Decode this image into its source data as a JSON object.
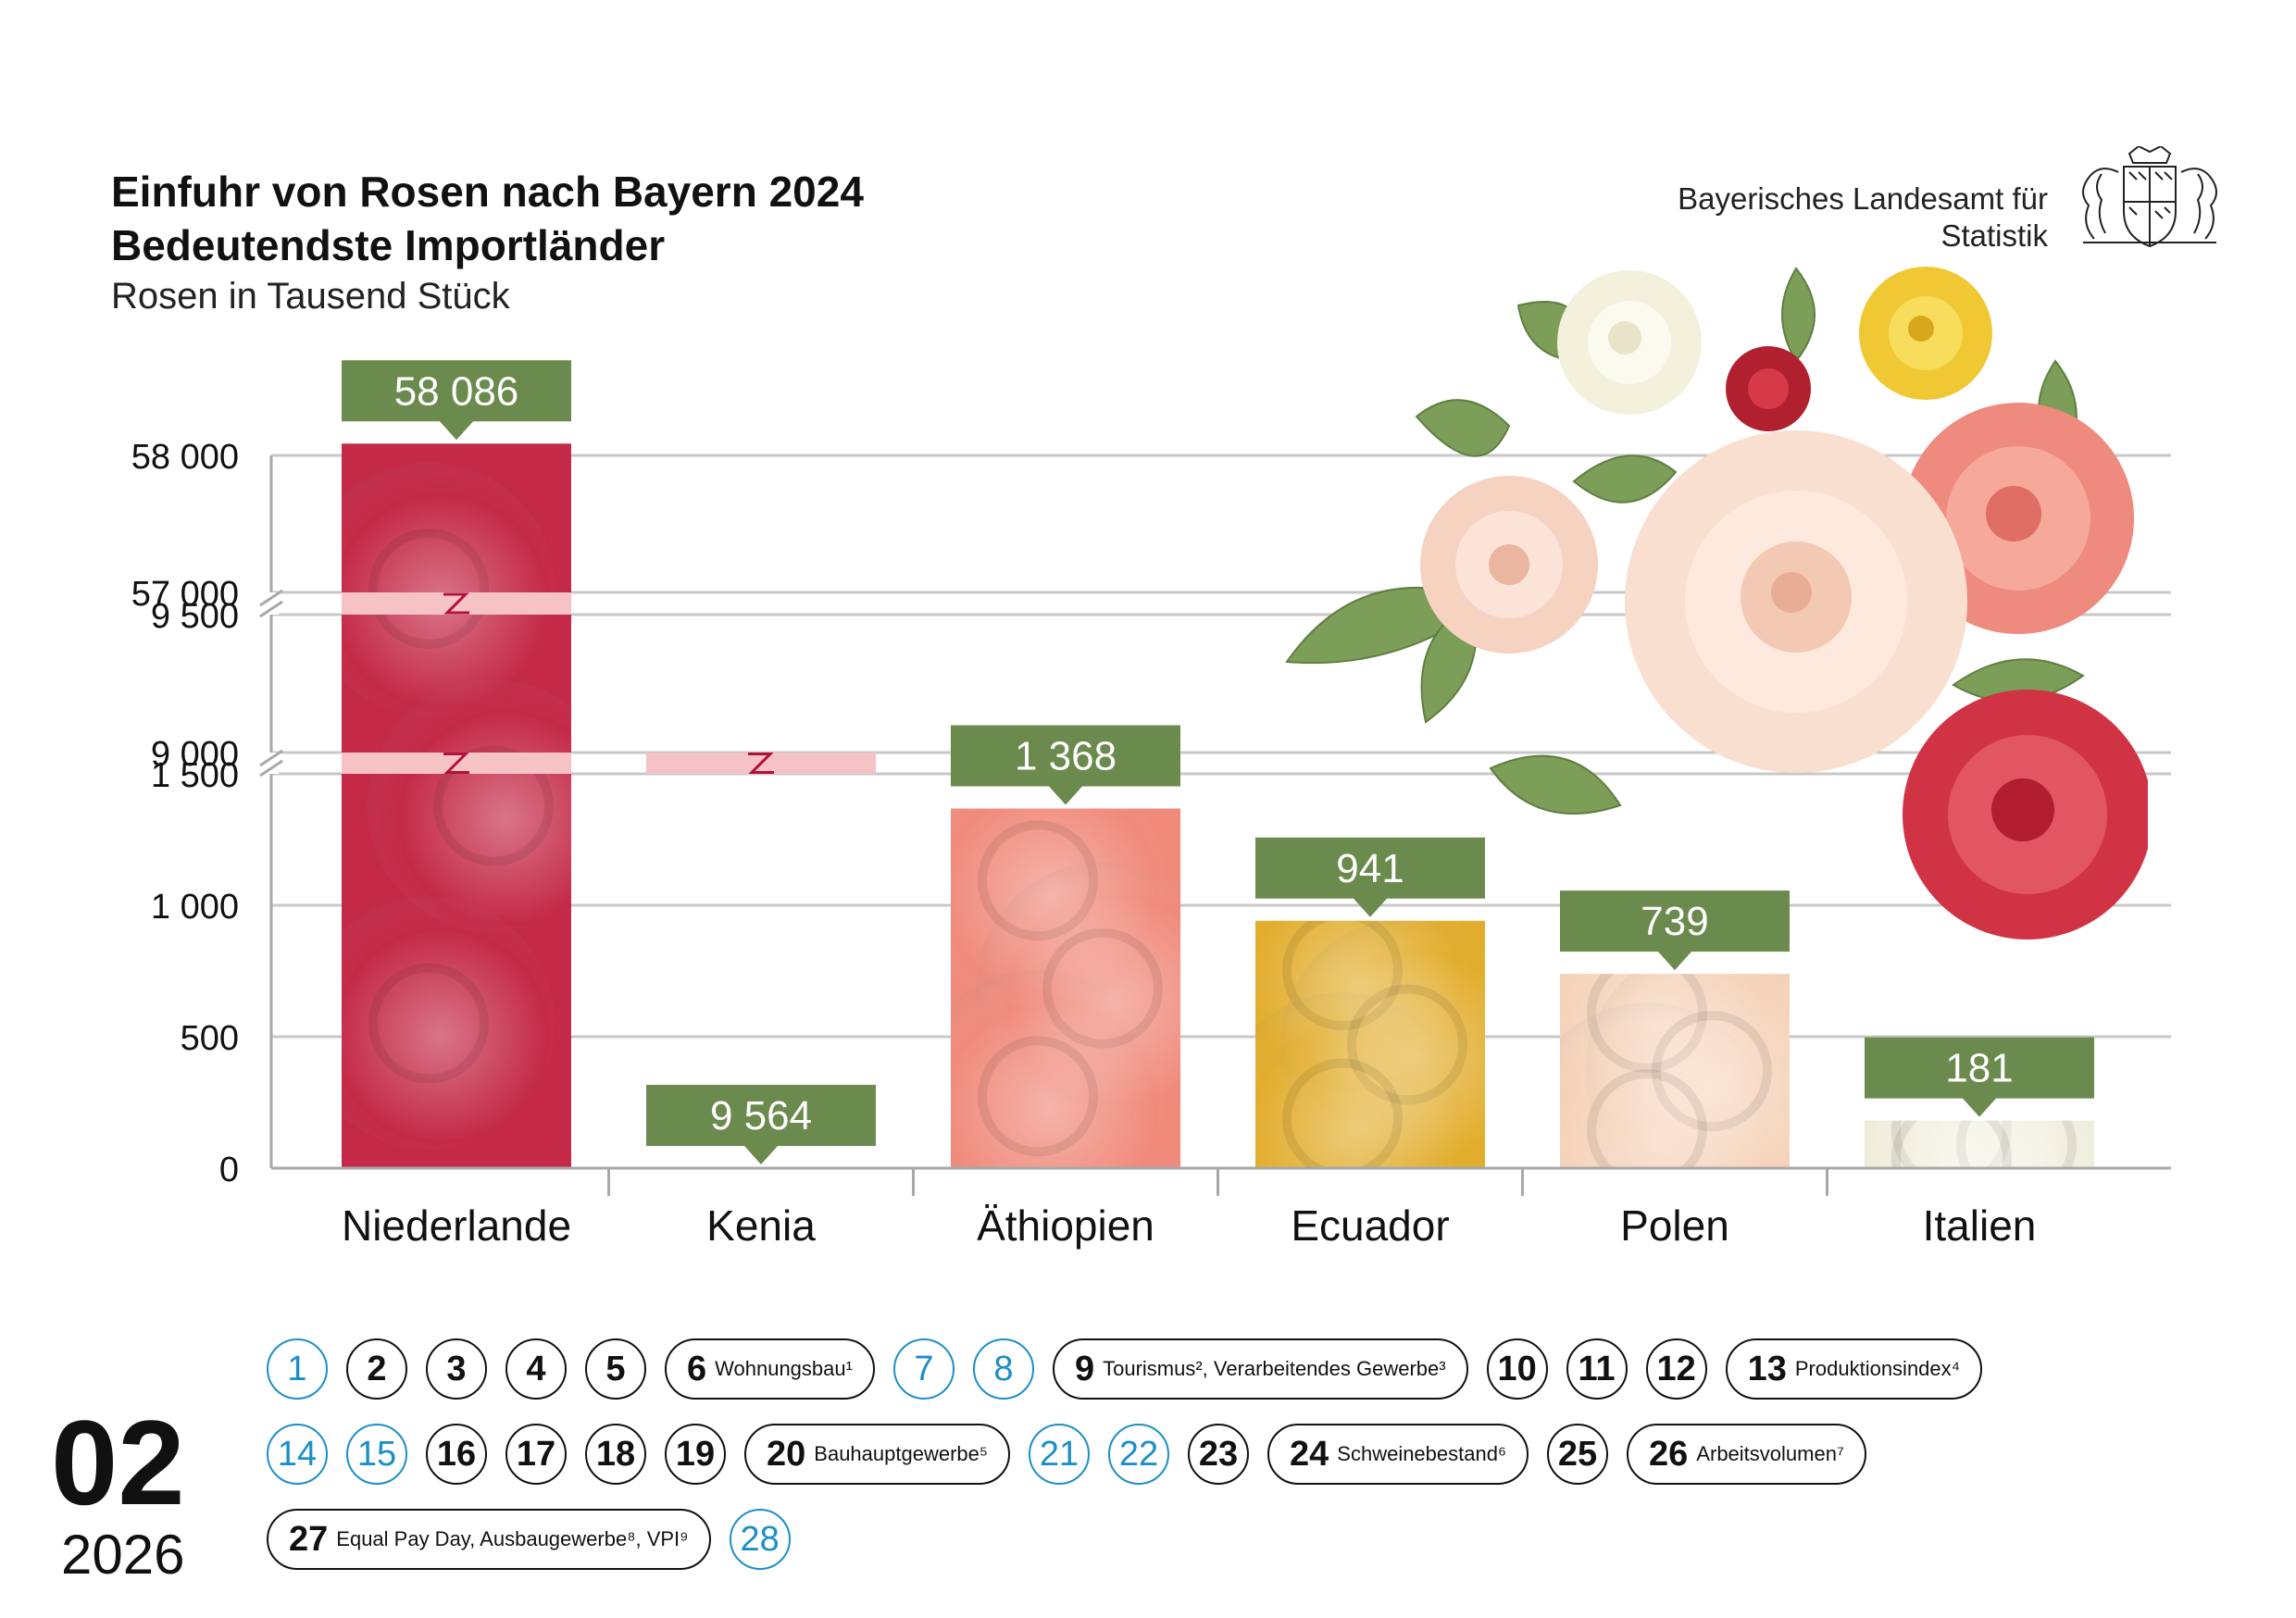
{
  "header": {
    "title_line1": "Einfuhr von Rosen nach Bayern 2024",
    "title_line2": "Bedeutendste Importländer",
    "subtitle": "Rosen in Tausend Stück",
    "office_line1": "Bayerisches Landesamt für",
    "office_line2": "Statistik"
  },
  "colors": {
    "value_box": "#6b8a4e",
    "grid": "#c8c8c8",
    "axis": "#a8a8a8",
    "break_band": "#f5c2c6",
    "break_mark": "#b0123a",
    "weekend": "#1d8fc8"
  },
  "chart_data": {
    "type": "bar",
    "title": "Einfuhr von Rosen nach Bayern 2024",
    "subtitle": "Rosen in Tausend Stück",
    "categories": [
      "Niederlande",
      "Kenia",
      "Äthiopien",
      "Ecuador",
      "Polen",
      "Italien"
    ],
    "values": [
      58086,
      9564,
      1368,
      941,
      739,
      181
    ],
    "value_labels": [
      "58 086",
      "9 564",
      "1 368",
      "941",
      "739",
      "181"
    ],
    "y_ticks": [
      {
        "value": 0,
        "label": "0"
      },
      {
        "value": 500,
        "label": "500"
      },
      {
        "value": 1000,
        "label": "1 000"
      },
      {
        "value": 1500,
        "label": "1 500"
      },
      {
        "value": 9000,
        "label": "9 000"
      },
      {
        "value": 9500,
        "label": "9 500"
      },
      {
        "value": 57000,
        "label": "57 000"
      },
      {
        "value": 58000,
        "label": "58 000"
      }
    ],
    "axis_breaks": [
      [
        1500,
        9000
      ],
      [
        9500,
        57000
      ]
    ],
    "bar_colors": [
      "#c42a48",
      "#d43f7e",
      "#f08b7c",
      "#e2ad2c",
      "#f5d2b8",
      "#eeecd8"
    ],
    "grid": true
  },
  "calendar": {
    "month": "02",
    "year": "2026",
    "days": [
      {
        "num": "1",
        "weekend": true
      },
      {
        "num": "2"
      },
      {
        "num": "3"
      },
      {
        "num": "4"
      },
      {
        "num": "5"
      },
      {
        "num": "6",
        "label": "Wohnungsbau¹"
      },
      {
        "num": "7",
        "weekend": true
      },
      {
        "num": "8",
        "weekend": true
      },
      {
        "num": "9",
        "label": "Tourismus², Verarbeitendes Gewerbe³"
      },
      {
        "num": "10"
      },
      {
        "num": "11"
      },
      {
        "num": "12"
      },
      {
        "num": "13",
        "label": "Produktionsindex⁴"
      },
      {
        "num": "14",
        "weekend": true
      },
      {
        "num": "15",
        "weekend": true
      },
      {
        "num": "16"
      },
      {
        "num": "17"
      },
      {
        "num": "18"
      },
      {
        "num": "19"
      },
      {
        "num": "20",
        "label": "Bauhauptgewerbe⁵"
      },
      {
        "num": "21",
        "weekend": true
      },
      {
        "num": "22",
        "weekend": true
      },
      {
        "num": "23"
      },
      {
        "num": "24",
        "label": "Schweinebestand⁶"
      },
      {
        "num": "25"
      },
      {
        "num": "26",
        "label": "Arbeitsvolumen⁷"
      },
      {
        "num": "27",
        "label": "Equal Pay Day, Ausbaugewerbe⁸, VPI⁹"
      },
      {
        "num": "28",
        "weekend": true
      }
    ]
  }
}
